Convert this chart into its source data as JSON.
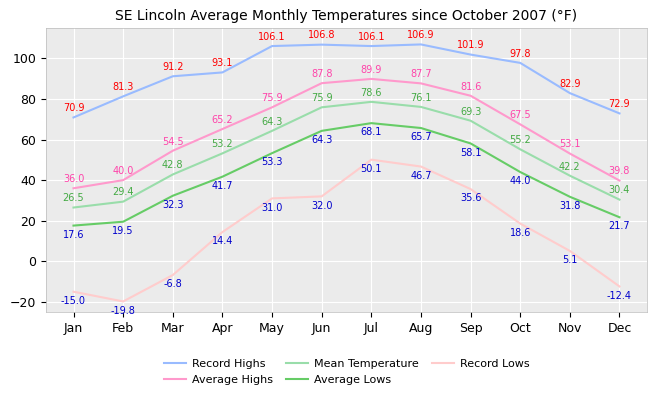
{
  "title": "SE Lincoln Average Monthly Temperatures since October 2007 (°F)",
  "months": [
    "Jan",
    "Feb",
    "Mar",
    "Apr",
    "May",
    "Jun",
    "Jul",
    "Aug",
    "Sep",
    "Oct",
    "Nov",
    "Dec"
  ],
  "record_highs": [
    70.9,
    81.3,
    91.2,
    93.1,
    106.1,
    106.8,
    106.1,
    106.9,
    101.9,
    97.8,
    82.9,
    72.9
  ],
  "avg_highs": [
    36.0,
    40.0,
    54.5,
    65.2,
    75.9,
    87.8,
    89.9,
    87.7,
    81.6,
    67.5,
    53.1,
    39.8
  ],
  "mean_temps": [
    26.5,
    29.4,
    42.8,
    53.2,
    64.3,
    75.9,
    78.6,
    76.1,
    69.3,
    55.2,
    42.2,
    30.4
  ],
  "avg_lows": [
    17.6,
    19.5,
    32.3,
    41.7,
    53.3,
    64.3,
    68.1,
    65.7,
    58.1,
    44.0,
    31.8,
    21.7
  ],
  "record_lows": [
    -15.0,
    -19.8,
    -6.8,
    14.4,
    31.0,
    32.0,
    50.1,
    46.7,
    35.6,
    18.6,
    5.1,
    -12.4
  ],
  "record_highs_line": "#99bbff",
  "avg_highs_line": "#ff99cc",
  "mean_temps_line": "#99ddaa",
  "avg_lows_line": "#66cc66",
  "record_lows_line": "#ffcccc",
  "record_highs_label": "#ff0000",
  "avg_highs_label": "#ff44aa",
  "mean_temps_label": "#44aa44",
  "avg_lows_label": "#0000cc",
  "record_lows_label": "#0000cc",
  "ylim": [
    -25,
    115
  ],
  "yticks": [
    -20,
    0,
    20,
    40,
    60,
    80,
    100
  ],
  "bg_color": "#ffffff",
  "plot_bg_color": "#ebebeb",
  "grid_color": "#ffffff",
  "title_fontsize": 10,
  "label_fontsize": 7
}
